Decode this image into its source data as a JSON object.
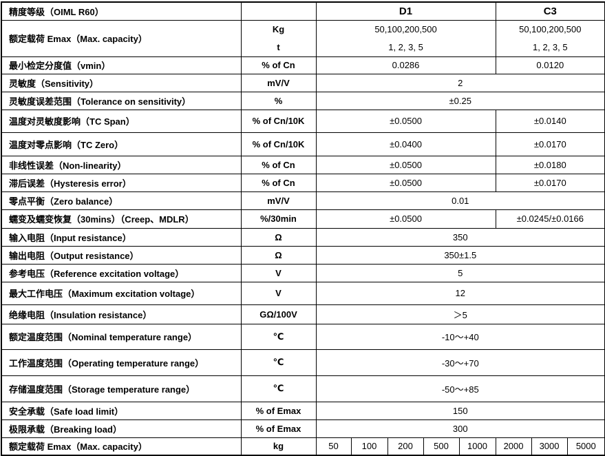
{
  "header": {
    "label": "精度等级（OIML R60）",
    "unit": "",
    "d1": "D1",
    "c3": "C3"
  },
  "capacity": {
    "label": "额定载荷 Emax（Max. capacity）",
    "unit_kg": "Kg",
    "unit_t": "t",
    "d1_kg": "50,100,200,500",
    "d1_t": "1, 2, 3, 5",
    "c3_kg": "50,100,200,500",
    "c3_t": "1, 2, 3, 5"
  },
  "rows": [
    {
      "label": "最小检定分度值（vmin）",
      "unit": "% of Cn",
      "d1": "0.0286",
      "c3": "0.0120"
    },
    {
      "label": "灵敏度（Sensitivity）",
      "unit": "mV/V",
      "value": "2"
    },
    {
      "label": "灵敏度误差范围（Tolerance on sensitivity）",
      "unit": "%",
      "value": "±0.25"
    },
    {
      "label": "温度对灵敏度影响（TC Span）",
      "unit": "% of Cn/10K",
      "d1": "±0.0500",
      "c3": "±0.0140"
    },
    {
      "label": "温度对零点影响（TC Zero）",
      "unit": "% of Cn/10K",
      "d1": "±0.0400",
      "c3": "±0.0170"
    },
    {
      "label": "非线性误差（Non-linearity）",
      "unit": "% of Cn",
      "d1": "±0.0500",
      "c3": "±0.0180"
    },
    {
      "label": "滞后误差（Hysteresis error）",
      "unit": "% of Cn",
      "d1": "±0.0500",
      "c3": "±0.0170"
    },
    {
      "label": "零点平衡（Zero balance）",
      "unit": "mV/V",
      "value": "0.01"
    },
    {
      "label": "蠕变及蠕变恢复（30mins）（Creep、MDLR）",
      "unit": "%/30min",
      "d1": "±0.0500",
      "c3": "±0.0245/±0.0166"
    },
    {
      "label": "输入电阻（Input resistance）",
      "unit": "Ω",
      "value": "350"
    },
    {
      "label": "输出电阻（Output resistance）",
      "unit": "Ω",
      "value": "350±1.5"
    },
    {
      "label": "参考电压（Reference excitation voltage）",
      "unit": "V",
      "value": "5"
    },
    {
      "label": "最大工作电压（Maximum excitation voltage）",
      "unit": "V",
      "value": "12"
    },
    {
      "label": "绝缘电阻（Insulation resistance）",
      "unit": "GΩ/100V",
      "value": "＞5"
    },
    {
      "label": "额定温度范围（Nominal temperature range）",
      "unit": "℃",
      "value": "-10～+40"
    },
    {
      "label": "工作温度范围（Operating temperature range）",
      "unit": "℃",
      "value": "-30～+70"
    },
    {
      "label": "存储温度范围（Storage temperature range）",
      "unit": "℃",
      "value": "-50～+85"
    },
    {
      "label": "安全承载（Safe load limit）",
      "unit": "% of Emax",
      "value": "150"
    },
    {
      "label": "极限承载（Breaking load）",
      "unit": "% of Emax",
      "value": "300"
    }
  ],
  "footer": {
    "label": "额定载荷 Emax（Max. capacity）",
    "unit": "kg",
    "capacities": [
      "50",
      "100",
      "200",
      "500",
      "1000",
      "2000",
      "3000",
      "5000"
    ]
  }
}
